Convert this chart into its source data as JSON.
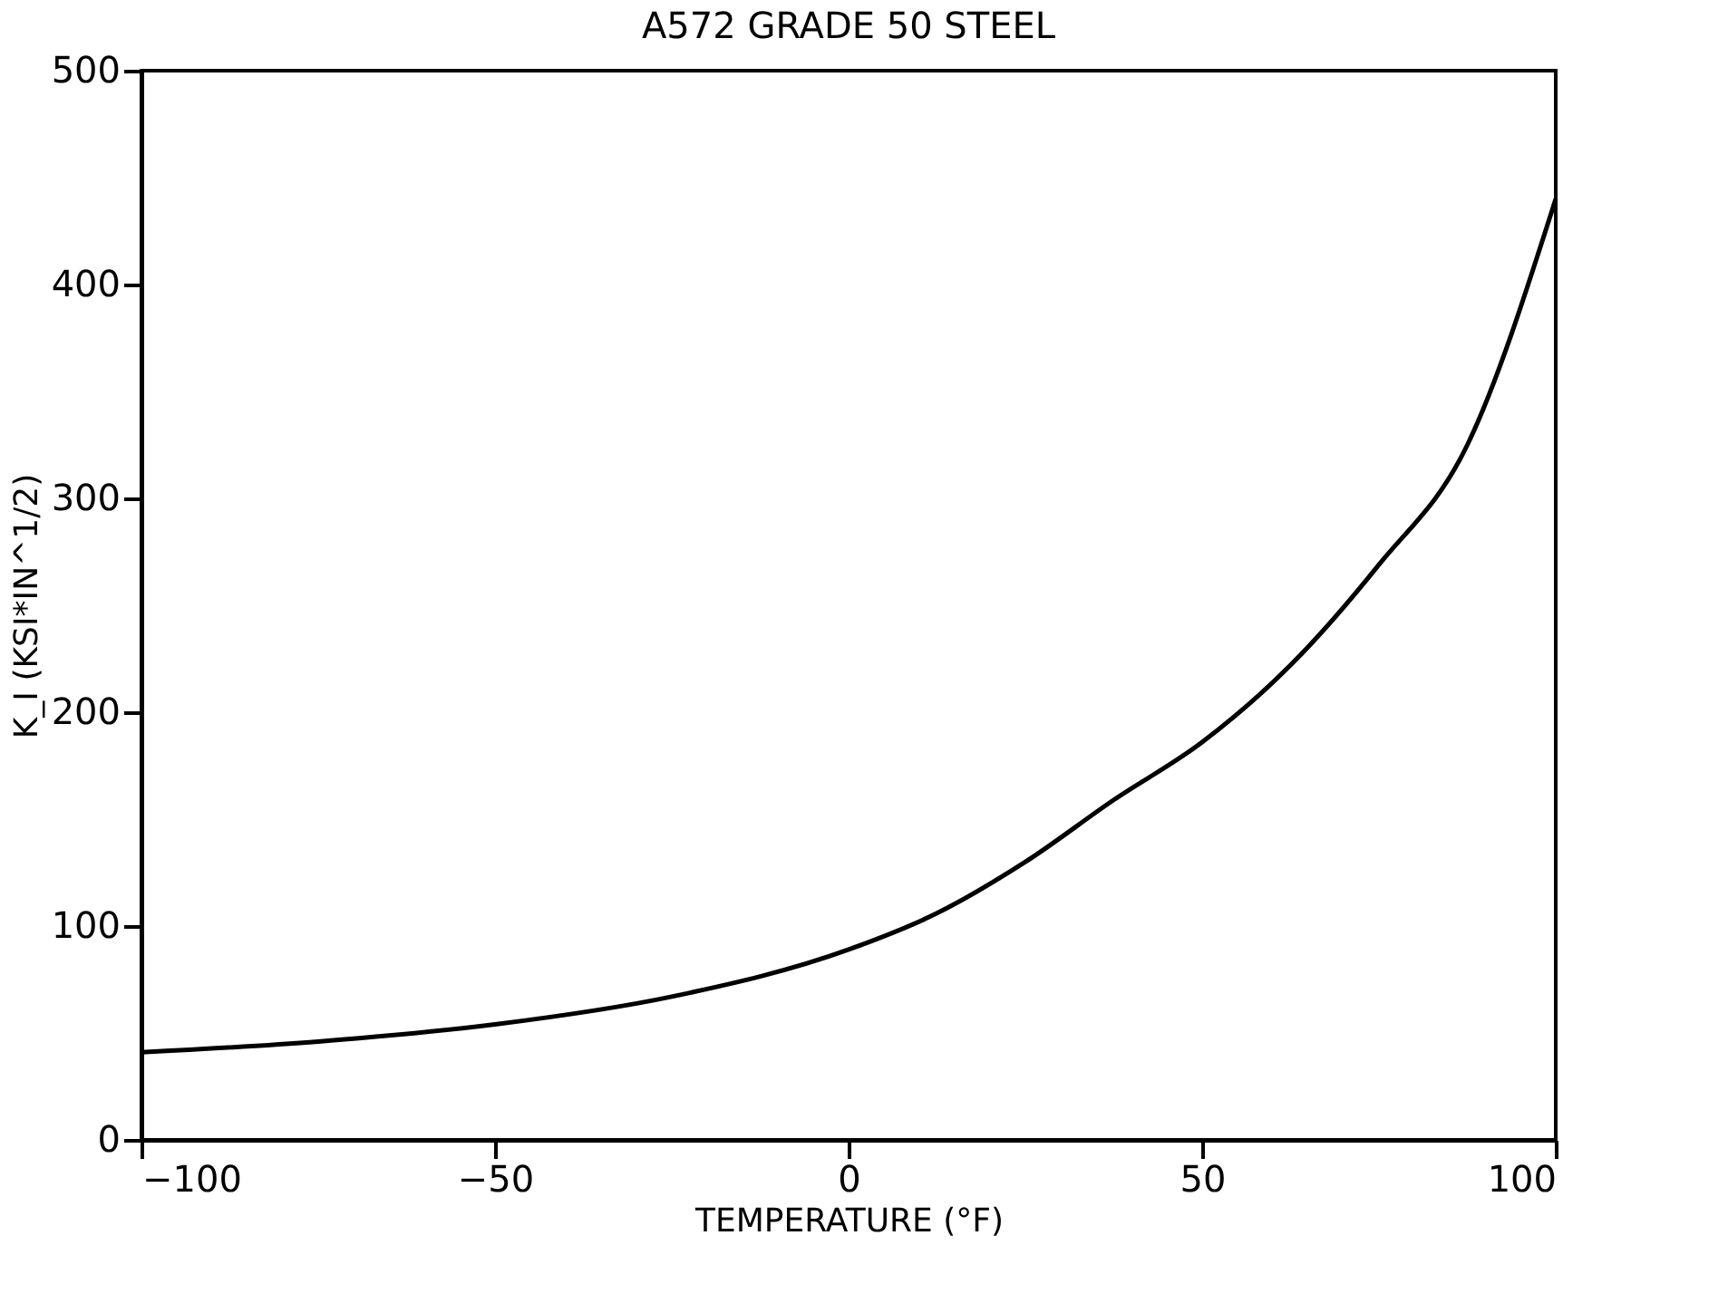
{
  "chart_data": {
    "type": "line",
    "title": "A572 GRADE 50 STEEL",
    "xlabel": "TEMPERATURE (°F)",
    "ylabel": "K_I (KSI*IN^1/2)",
    "x": [
      -100,
      -75,
      -50,
      -25,
      0,
      12.5,
      25,
      37.5,
      50,
      62.5,
      75,
      87.5,
      100
    ],
    "series": [
      {
        "color": "#000000",
        "values": [
          41,
          46,
          54,
          67,
          89,
          106,
          130,
          159,
          186,
          222,
          269,
          325,
          440
        ]
      }
    ],
    "xlim": [
      -100,
      100
    ],
    "xticks": [
      -100,
      -50,
      0,
      50,
      100
    ],
    "ylim": [
      0,
      500
    ],
    "yticks": [
      0,
      100,
      200,
      300,
      400,
      500
    ],
    "grid": false
  }
}
